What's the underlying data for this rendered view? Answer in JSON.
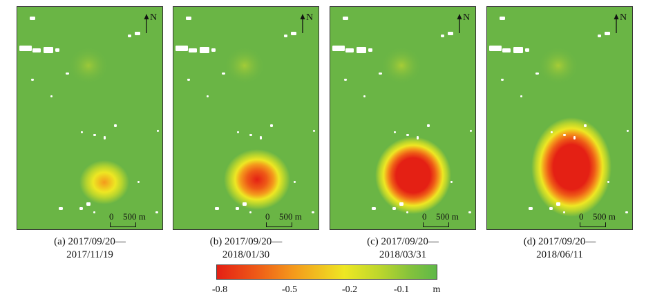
{
  "panels": [
    {
      "caption_line1": "(a) 2017/09/20—",
      "caption_line2": "2017/11/19",
      "max_subsidence_level": 0.45
    },
    {
      "caption_line1": "(b) 2017/09/20—",
      "caption_line2": "2018/01/30",
      "max_subsidence_level": 0.8
    },
    {
      "caption_line1": "(c) 2017/09/20—",
      "caption_line2": "2018/03/31",
      "max_subsidence_level": 1.0
    },
    {
      "caption_line1": "(d) 2017/09/20—",
      "caption_line2": "2018/06/11",
      "max_subsidence_level": 1.0
    }
  ],
  "north_label": "N",
  "scalebar": {
    "zero": "0",
    "length": "500 m"
  },
  "colorbar": {
    "ticks": [
      "-0.8",
      "-0.5",
      "-0.2",
      "-0.1"
    ],
    "unit": "m",
    "colors": [
      "#e42014",
      "#ee5a17",
      "#f49a1c",
      "#eee723",
      "#b9d52d",
      "#84c23c",
      "#5fb848"
    ]
  }
}
